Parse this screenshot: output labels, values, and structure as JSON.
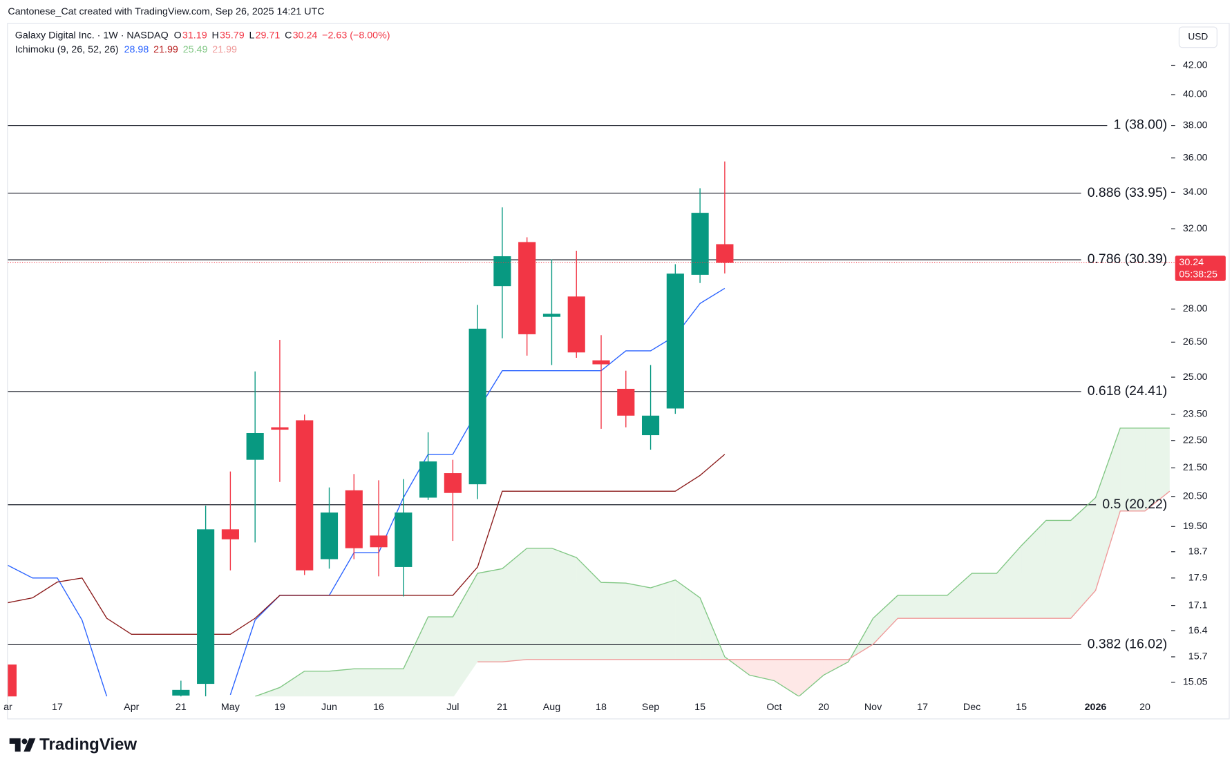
{
  "attribution": "Cantonese_Cat created with TradingView.com, Sep 26, 2025 14:21 UTC",
  "brand": "TradingView",
  "chart_data": {
    "type": "candlestick",
    "symbol": "Galaxy Digital Inc. · 1W · NASDAQ",
    "ohlc_labels": [
      "O",
      "H",
      "L",
      "C"
    ],
    "change": "−2.63 (−8.00%)",
    "currency": "USD",
    "countdown": "05:38:25",
    "categories": [
      "ar",
      null,
      "17",
      null,
      null,
      "Apr",
      null,
      "21",
      null,
      "May",
      null,
      "19",
      null,
      "Jun",
      null,
      "16",
      null,
      null,
      "Jul",
      null,
      "21",
      null,
      "Aug",
      null,
      "18",
      null,
      "Sep",
      null,
      "15",
      null,
      null,
      "Oct",
      null,
      "20",
      null,
      "Nov",
      null,
      "17",
      null,
      "Dec",
      null,
      "15",
      null,
      null,
      "2026",
      null,
      "20",
      null
    ],
    "open": [
      15.5,
      null,
      null,
      null,
      null,
      null,
      null,
      14.72,
      15.01,
      19.41,
      21.79,
      23.0,
      23.27,
      18.47,
      20.71,
      19.21,
      18.23,
      20.46,
      21.31,
      20.92,
      29.09,
      31.3,
      27.64,
      28.59,
      25.71,
      24.52,
      22.7,
      23.73,
      29.64,
      31.19,
      null,
      null,
      null,
      null,
      null,
      null,
      null,
      null,
      null,
      null,
      null,
      null,
      null,
      null,
      null,
      null,
      null,
      null
    ],
    "high": [
      15.5,
      null,
      null,
      null,
      null,
      null,
      null,
      15.09,
      20.19,
      21.37,
      25.24,
      26.6,
      23.49,
      20.81,
      21.28,
      21.06,
      21.1,
      22.81,
      21.79,
      28.19,
      33.16,
      31.55,
      30.41,
      30.85,
      26.81,
      25.27,
      25.51,
      30.17,
      34.23,
      35.79,
      null,
      null,
      null,
      null,
      null,
      null,
      null,
      null,
      null,
      null,
      null,
      null,
      null,
      null,
      null,
      null,
      null,
      null
    ],
    "low": [
      14.3,
      null,
      null,
      null,
      null,
      null,
      null,
      14.5,
      14.7,
      18.13,
      18.99,
      21.0,
      17.99,
      18.18,
      18.47,
      17.95,
      17.36,
      20.38,
      19.04,
      20.41,
      26.67,
      25.91,
      25.51,
      25.82,
      22.94,
      23.0,
      22.16,
      23.52,
      29.24,
      29.71,
      null,
      null,
      null,
      null,
      null,
      null,
      null,
      null,
      null,
      null,
      null,
      null,
      null,
      null,
      null,
      null,
      null,
      null
    ],
    "close": [
      14.5,
      null,
      null,
      null,
      null,
      null,
      null,
      14.86,
      19.41,
      19.09,
      22.78,
      22.91,
      18.13,
      19.96,
      18.81,
      18.84,
      19.96,
      21.73,
      20.62,
      27.1,
      30.57,
      26.85,
      27.78,
      26.05,
      25.54,
      23.45,
      23.45,
      29.7,
      32.86,
      30.24,
      null,
      null,
      null,
      null,
      null,
      null,
      null,
      null,
      null,
      null,
      null,
      null,
      null,
      null,
      null,
      null,
      null,
      null
    ],
    "up_color": "#089981",
    "down_color": "#f23645",
    "indicator": {
      "name": "Ichimoku (9, 26, 52, 26)",
      "legend_values": [
        28.98,
        21.99,
        25.49,
        21.99
      ],
      "legend_colors": [
        "#2962ff",
        "#b71c1c",
        "#81c784",
        "#ef9a9a"
      ],
      "series": [
        {
          "color": "#2962ff",
          "values": [
            18.28,
            17.9,
            17.9,
            16.69,
            14.7,
            null,
            null,
            null,
            null,
            14.74,
            16.69,
            17.39,
            17.39,
            17.39,
            18.67,
            18.67,
            20.46,
            21.99,
            21.99,
            23.64,
            25.27,
            25.27,
            25.27,
            25.27,
            25.27,
            26.12,
            26.12,
            26.78,
            28.26,
            28.98,
            null,
            null,
            null,
            null,
            null,
            null,
            null,
            null,
            null,
            null,
            null,
            null,
            null,
            null,
            null,
            null,
            null,
            null
          ]
        },
        {
          "color": "#8b1a1a",
          "values": [
            17.18,
            17.32,
            17.78,
            17.9,
            16.74,
            16.3,
            16.3,
            16.3,
            16.3,
            16.3,
            16.74,
            17.39,
            17.39,
            17.39,
            17.39,
            17.39,
            17.39,
            17.39,
            17.39,
            18.23,
            20.68,
            20.68,
            20.68,
            20.68,
            20.68,
            20.68,
            20.68,
            20.68,
            21.23,
            21.99,
            null,
            null,
            null,
            null,
            null,
            null,
            null,
            null,
            null,
            null,
            null,
            null,
            null,
            null,
            null,
            null,
            null,
            null
          ]
        },
        {
          "color": "#81c784",
          "values": [
            null,
            null,
            null,
            null,
            null,
            null,
            null,
            null,
            null,
            null,
            14.7,
            14.92,
            15.33,
            15.33,
            15.39,
            15.39,
            15.39,
            16.78,
            16.78,
            18.04,
            18.18,
            18.81,
            18.81,
            18.52,
            17.77,
            17.75,
            17.61,
            17.84,
            17.32,
            15.7,
            15.23,
            15.09,
            14.7,
            15.23,
            15.57,
            16.74,
            17.39,
            17.39,
            17.39,
            18.04,
            18.04,
            18.89,
            19.7,
            19.7,
            20.46,
            22.97,
            22.97,
            22.97
          ]
        },
        {
          "color": "#ef9a9a",
          "values": [
            null,
            null,
            null,
            null,
            null,
            null,
            null,
            null,
            null,
            null,
            null,
            null,
            null,
            null,
            null,
            null,
            null,
            null,
            null,
            15.57,
            15.57,
            15.63,
            15.63,
            15.63,
            15.63,
            15.63,
            15.63,
            15.63,
            15.63,
            15.63,
            15.63,
            15.63,
            15.63,
            15.63,
            15.63,
            16.03,
            16.74,
            16.74,
            16.74,
            16.74,
            16.74,
            16.74,
            16.74,
            16.74,
            17.53,
            20.01,
            20.01,
            20.68
          ]
        }
      ],
      "cloud_colors": {
        "up": "rgba(76,175,80,0.12)",
        "down": "rgba(244,67,54,0.12)"
      }
    },
    "fib_levels": [
      {
        "value": 38.0,
        "label": "1 (38.00)"
      },
      {
        "value": 33.95,
        "label": "0.886 (33.95)"
      },
      {
        "value": 30.39,
        "label": "0.786 (30.39)"
      },
      {
        "value": 24.41,
        "label": "0.618 (24.41)"
      },
      {
        "value": 20.22,
        "label": "0.5 (20.22)"
      },
      {
        "value": 16.02,
        "label": "0.382 (16.02)"
      }
    ],
    "log_scale": true,
    "ylim": [
      14.7,
      45.0
    ],
    "yticks": [
      {
        "value": 42,
        "label": "42.00"
      },
      {
        "value": 40,
        "label": "40.00"
      },
      {
        "value": 38,
        "label": "38.00"
      },
      {
        "value": 36,
        "label": "36.00"
      },
      {
        "value": 34,
        "label": "34.00"
      },
      {
        "value": 32,
        "label": "32.00"
      },
      {
        "value": 28,
        "label": "28.00"
      },
      {
        "value": 26.5,
        "label": "26.50"
      },
      {
        "value": 25,
        "label": "25.00"
      },
      {
        "value": 23.5,
        "label": "23.50"
      },
      {
        "value": 22.5,
        "label": "22.50"
      },
      {
        "value": 21.5,
        "label": "21.50"
      },
      {
        "value": 20.5,
        "label": "20.50"
      },
      {
        "value": 19.5,
        "label": "19.50"
      },
      18.7,
      17.9,
      17.1,
      16.4,
      15.7,
      15.05
    ]
  }
}
